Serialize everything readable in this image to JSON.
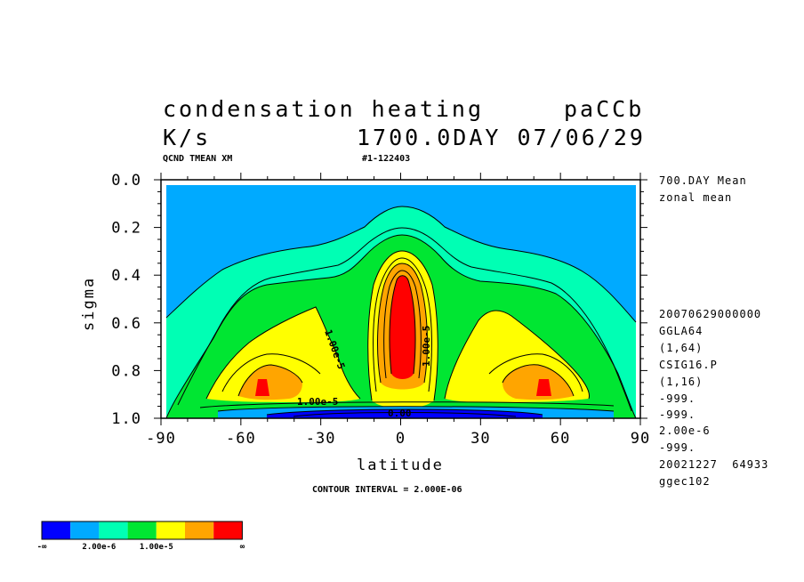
{
  "header": {
    "title": "condensation heating",
    "run_id": "paCCb",
    "units": "K/s",
    "time_stamp": "1700.0DAY 07/06/29",
    "var_desc": "QCND TMEAN XM",
    "file_tag": "#1-122403"
  },
  "side_info": {
    "mean_period": "700.DAY Mean",
    "mean_type": "zonal mean",
    "lines": [
      "20070629000000",
      "GGLA64",
      "(1,64)",
      "CSIG16.P",
      "(1,16)",
      "-999.",
      "-999.",
      "2.00e-6",
      "-999.",
      "20021227  64933",
      "ggec102"
    ]
  },
  "footer": {
    "contour_interval": "CONTOUR INTERVAL = 2.000E-06"
  },
  "colors": {
    "c1": "#0000ff",
    "c2": "#00aaff",
    "c3": "#00ffb4",
    "c4": "#00e632",
    "c5": "#ffff00",
    "c6": "#ffa500",
    "c7": "#ff0000"
  },
  "legend": {
    "labels": [
      "-∞",
      "2.00e-6",
      "1.00e-5",
      "∞"
    ]
  },
  "chart_data": {
    "type": "heatmap",
    "title": "condensation heating",
    "xlabel": "latitude",
    "ylabel": "sigma",
    "xlim": [
      -90,
      90
    ],
    "ylim": [
      1.0,
      0.0
    ],
    "x_ticks": [
      -90,
      -60,
      -30,
      0,
      30,
      60,
      90
    ],
    "x_tick_labels": [
      "-90",
      "-60",
      "-30",
      "0",
      "30",
      "60",
      "90"
    ],
    "y_ticks": [
      0.0,
      0.2,
      0.4,
      0.6,
      0.8,
      1.0
    ],
    "y_tick_labels": [
      "0.0",
      "0.2",
      "0.4",
      "0.6",
      "0.8",
      "1.0"
    ],
    "contour_interval": 2e-06,
    "contour_labels": [
      "1.00e-5",
      "1.00e-5",
      "1.00e-5",
      "0.00"
    ],
    "color_levels": [
      {
        "range": "< 0",
        "color": "#0000ff"
      },
      {
        "range": "0 – 2.00e-6",
        "color": "#00aaff"
      },
      {
        "range": "2.00e-6 – 4.00e-6",
        "color": "#00ffb4"
      },
      {
        "range": "4.00e-6 – 1.00e-5",
        "color": "#00e632"
      },
      {
        "range": "1.00e-5 – 1.60e-5",
        "color": "#ffff00"
      },
      {
        "range": "1.60e-5 – 2.20e-5",
        "color": "#ffa500"
      },
      {
        "range": "> 2.20e-5",
        "color": "#ff0000"
      }
    ]
  }
}
